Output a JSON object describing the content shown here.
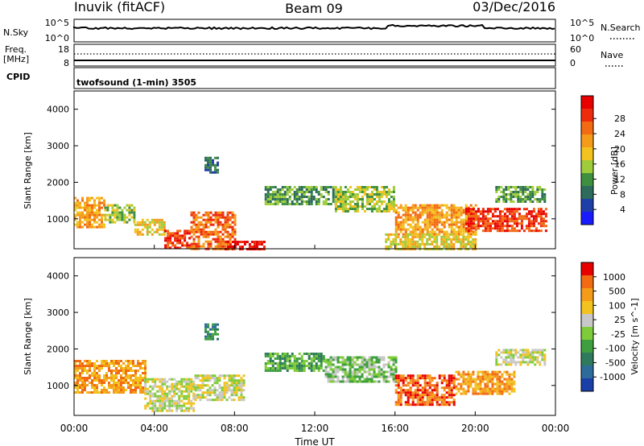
{
  "header": {
    "station": "Inuvik (fitACF)",
    "beam": "Beam 09",
    "date": "03/Dec/2016"
  },
  "strip_panels": {
    "nsky": {
      "label": "N.Sky",
      "left_ticks": [
        "10^5",
        "10^0"
      ],
      "right_ticks": [
        "10^5",
        "10^0"
      ],
      "right_label": "N.Search",
      "right_line_style": "dotted"
    },
    "freq": {
      "label_line1": "Freq.",
      "label_line2": "[MHz]",
      "left_ticks": [
        "18",
        "8"
      ],
      "right_ticks": [
        "60",
        "0"
      ],
      "right_label": "Nave",
      "right_line_style": "dotted"
    },
    "cpid": {
      "label": "CPID",
      "program": "twofsound (1-min) 3505"
    }
  },
  "chart_data": [
    {
      "type": "heatmap",
      "title": "",
      "xlabel": "",
      "ylabel": "Slant Range [km]",
      "xlim": [
        0,
        24
      ],
      "ylim": [
        180,
        4500
      ],
      "y_ticks": [
        1000,
        2000,
        3000,
        4000
      ],
      "colorbar": {
        "label": "Power [dB]",
        "ticks": [
          "4",
          "8",
          "12",
          "16",
          "20",
          "24",
          "28"
        ],
        "colors": [
          "#1a1aff",
          "#1f3fa8",
          "#2d6b5c",
          "#3f8f40",
          "#9fcc3a",
          "#f2c21e",
          "#f59b1a",
          "#f26a12",
          "#ee2b0c",
          "#e80000"
        ]
      },
      "regions": [
        {
          "x0": 0.0,
          "x1": 1.5,
          "y0": 800,
          "y1": 1600,
          "level": 6
        },
        {
          "x0": 1.5,
          "x1": 3.0,
          "y0": 900,
          "y1": 1400,
          "level": 4
        },
        {
          "x0": 3.0,
          "x1": 4.5,
          "y0": 600,
          "y1": 1000,
          "level": 5
        },
        {
          "x0": 4.5,
          "x1": 5.8,
          "y0": 180,
          "y1": 700,
          "level": 8
        },
        {
          "x0": 5.8,
          "x1": 8.0,
          "y0": 180,
          "y1": 1200,
          "level": 7
        },
        {
          "x0": 7.5,
          "x1": 9.5,
          "y0": 180,
          "y1": 400,
          "level": 9
        },
        {
          "x0": 6.5,
          "x1": 7.2,
          "y0": 2300,
          "y1": 2700,
          "level": 2
        },
        {
          "x0": 9.5,
          "x1": 13.0,
          "y0": 1400,
          "y1": 1900,
          "level": 3
        },
        {
          "x0": 13.0,
          "x1": 16.0,
          "y0": 1200,
          "y1": 1900,
          "level": 4
        },
        {
          "x0": 16.0,
          "x1": 20.0,
          "y0": 600,
          "y1": 1400,
          "level": 6
        },
        {
          "x0": 19.5,
          "x1": 23.5,
          "y0": 700,
          "y1": 1300,
          "level": 8
        },
        {
          "x0": 21.0,
          "x1": 23.5,
          "y0": 1500,
          "y1": 1900,
          "level": 3
        },
        {
          "x0": 15.5,
          "x1": 20.0,
          "y0": 180,
          "y1": 600,
          "level": 5
        }
      ]
    },
    {
      "type": "heatmap",
      "title": "",
      "xlabel": "Time UT",
      "ylabel": "Slant Range [km]",
      "xlim": [
        0,
        24
      ],
      "ylim": [
        180,
        4500
      ],
      "x_ticks": [
        "00:00",
        "04:00",
        "08:00",
        "12:00",
        "16:00",
        "20:00",
        "00:00"
      ],
      "y_ticks": [
        1000,
        2000,
        3000,
        4000
      ],
      "colorbar": {
        "label": "Velocity [m s^-1]",
        "ticks": [
          "1000",
          "500",
          "100",
          "25",
          "-25",
          "-100",
          "-500",
          "-1000"
        ],
        "colors": [
          "#1a3fa8",
          "#2d6b9a",
          "#2f7a5c",
          "#3f9f40",
          "#7fcc3a",
          "#c8c8c8",
          "#f2c21e",
          "#f59b1a",
          "#f26a12",
          "#e80000"
        ]
      },
      "regions": [
        {
          "x0": 0.0,
          "x1": 3.5,
          "y0": 800,
          "y1": 1700,
          "level": 7
        },
        {
          "x0": 3.5,
          "x1": 6.0,
          "y0": 300,
          "y1": 1200,
          "level": 5
        },
        {
          "x0": 6.0,
          "x1": 8.5,
          "y0": 600,
          "y1": 1300,
          "level": 5
        },
        {
          "x0": 6.5,
          "x1": 7.2,
          "y0": 2300,
          "y1": 2700,
          "level": 2
        },
        {
          "x0": 9.5,
          "x1": 12.5,
          "y0": 1400,
          "y1": 1900,
          "level": 3
        },
        {
          "x0": 12.5,
          "x1": 16.0,
          "y0": 1100,
          "y1": 1800,
          "level": 4
        },
        {
          "x0": 16.0,
          "x1": 19.0,
          "y0": 500,
          "y1": 1300,
          "level": 8
        },
        {
          "x0": 19.0,
          "x1": 22.0,
          "y0": 800,
          "y1": 1400,
          "level": 7
        },
        {
          "x0": 21.0,
          "x1": 23.5,
          "y0": 1600,
          "y1": 2000,
          "level": 5
        }
      ]
    }
  ]
}
